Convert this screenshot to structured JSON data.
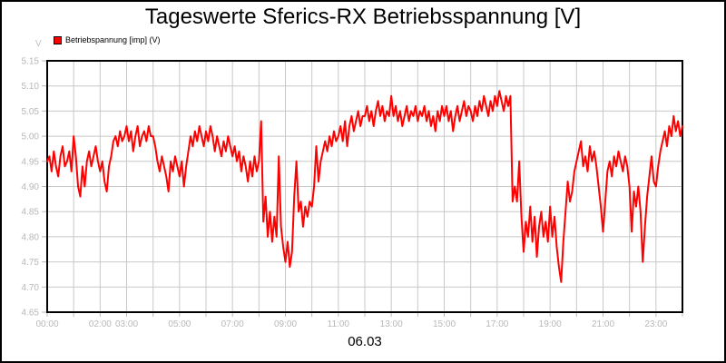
{
  "header": {
    "title": "Tageswerte Sferics-RX Betriebsspannung [V]"
  },
  "legend": {
    "label": "Betriebspannung [imp] (V)",
    "marker_color": "#ff0000"
  },
  "footer": {
    "date_label": "06.03"
  },
  "colors": {
    "series": "#ff0000",
    "grid": "#c8c8c8",
    "tick_label": "#b8b8b8",
    "axis_frame": "#000000",
    "background": "#ffffff"
  },
  "chart_data": {
    "type": "line",
    "title": "Tageswerte Sferics-RX Betriebsspannung [V]",
    "xlabel": "06.03",
    "ylabel": "V",
    "legend_position": "top-left",
    "grid": "on",
    "xlim_hours": [
      0,
      24
    ],
    "ylim": [
      4.65,
      5.15
    ],
    "y_ticks": [
      "5.15",
      "5.10",
      "5.05",
      "5.00",
      "4.95",
      "4.90",
      "4.85",
      "4.80",
      "4.75",
      "4.70",
      "4.65"
    ],
    "y_tick_values": [
      5.15,
      5.1,
      5.05,
      5.0,
      4.95,
      4.9,
      4.85,
      4.8,
      4.75,
      4.7,
      4.65
    ],
    "x_grid_every_hours": 1,
    "x_ticks": [
      {
        "hour": 0,
        "label": "00:00"
      },
      {
        "hour": 2,
        "label": "02:00"
      },
      {
        "hour": 3,
        "label": "03:00"
      },
      {
        "hour": 5,
        "label": "05:00"
      },
      {
        "hour": 7,
        "label": "07:00"
      },
      {
        "hour": 9,
        "label": "09:00"
      },
      {
        "hour": 11,
        "label": "11:00"
      },
      {
        "hour": 13,
        "label": "13:00"
      },
      {
        "hour": 15,
        "label": "15:00"
      },
      {
        "hour": 17,
        "label": "17:00"
      },
      {
        "hour": 19,
        "label": "19:00"
      },
      {
        "hour": 21,
        "label": "21:00"
      },
      {
        "hour": 23,
        "label": "23:00"
      }
    ],
    "series": [
      {
        "name": "Betriebspannung [imp] (V)",
        "color": "#ff0000",
        "start_hour": 0,
        "interval_minutes": 5,
        "values": [
          4.95,
          4.96,
          4.93,
          4.97,
          4.94,
          4.92,
          4.96,
          4.98,
          4.94,
          4.95,
          4.97,
          4.93,
          5.0,
          4.96,
          4.9,
          4.88,
          4.94,
          4.9,
          4.95,
          4.97,
          4.94,
          4.96,
          4.98,
          4.95,
          4.93,
          4.95,
          4.91,
          4.89,
          4.94,
          4.96,
          4.99,
          5.0,
          4.98,
          5.01,
          4.99,
          5.0,
          5.02,
          4.99,
          5.01,
          4.97,
          5.0,
          5.02,
          4.98,
          5.0,
          5.01,
          4.99,
          5.02,
          5.0,
          5.0,
          4.98,
          4.95,
          4.93,
          4.96,
          4.94,
          4.92,
          4.89,
          4.95,
          4.93,
          4.96,
          4.94,
          4.92,
          4.95,
          4.9,
          4.94,
          4.97,
          5.0,
          4.98,
          5.01,
          4.99,
          5.02,
          5.0,
          4.98,
          5.01,
          4.99,
          5.02,
          5.0,
          4.97,
          5.0,
          4.98,
          4.96,
          4.99,
          4.97,
          5.0,
          4.98,
          4.96,
          4.98,
          4.95,
          4.97,
          4.93,
          4.96,
          4.94,
          4.91,
          4.95,
          4.92,
          4.96,
          4.93,
          4.95,
          5.03,
          4.83,
          4.88,
          4.8,
          4.85,
          4.79,
          4.84,
          4.8,
          4.96,
          4.82,
          4.78,
          4.75,
          4.79,
          4.74,
          4.77,
          4.88,
          4.95,
          4.85,
          4.87,
          4.82,
          4.86,
          4.84,
          4.87,
          4.86,
          4.9,
          4.98,
          4.91,
          4.95,
          4.97,
          4.99,
          4.97,
          5.0,
          4.98,
          5.01,
          4.99,
          5.0,
          5.02,
          4.99,
          5.03,
          4.98,
          5.02,
          5.04,
          5.01,
          5.03,
          5.05,
          5.02,
          5.04,
          5.04,
          5.06,
          5.03,
          5.05,
          5.02,
          5.05,
          5.07,
          5.04,
          5.06,
          5.03,
          5.05,
          5.04,
          5.08,
          5.04,
          5.06,
          5.03,
          5.05,
          5.02,
          5.04,
          5.06,
          5.03,
          5.05,
          5.04,
          5.06,
          5.03,
          5.05,
          5.04,
          5.06,
          5.03,
          5.05,
          5.02,
          5.04,
          5.01,
          5.05,
          5.03,
          5.06,
          5.04,
          5.06,
          5.03,
          5.05,
          5.01,
          5.04,
          5.06,
          5.03,
          5.05,
          5.07,
          5.04,
          5.06,
          5.05,
          5.03,
          5.06,
          5.04,
          5.07,
          5.05,
          5.08,
          5.06,
          5.04,
          5.07,
          5.05,
          5.08,
          5.06,
          5.09,
          5.07,
          5.05,
          5.08,
          5.06,
          5.08,
          4.87,
          4.9,
          4.87,
          4.95,
          4.84,
          4.77,
          4.83,
          4.8,
          4.86,
          4.79,
          4.84,
          4.76,
          4.82,
          4.85,
          4.8,
          4.83,
          4.79,
          4.86,
          4.8,
          4.84,
          4.78,
          4.74,
          4.71,
          4.79,
          4.85,
          4.91,
          4.87,
          4.89,
          4.93,
          4.95,
          4.97,
          4.99,
          4.94,
          4.96,
          4.93,
          4.98,
          4.95,
          4.97,
          4.94,
          4.9,
          4.86,
          4.81,
          4.87,
          4.93,
          4.95,
          4.92,
          4.96,
          4.94,
          4.97,
          4.95,
          4.93,
          4.96,
          4.94,
          4.9,
          4.81,
          4.89,
          4.86,
          4.9,
          4.85,
          4.75,
          4.82,
          4.88,
          4.92,
          4.96,
          4.91,
          4.9,
          4.94,
          4.97,
          4.99,
          5.01,
          4.98,
          5.02,
          5.0,
          5.04,
          5.01,
          5.03,
          5.0,
          5.02
        ]
      }
    ]
  }
}
